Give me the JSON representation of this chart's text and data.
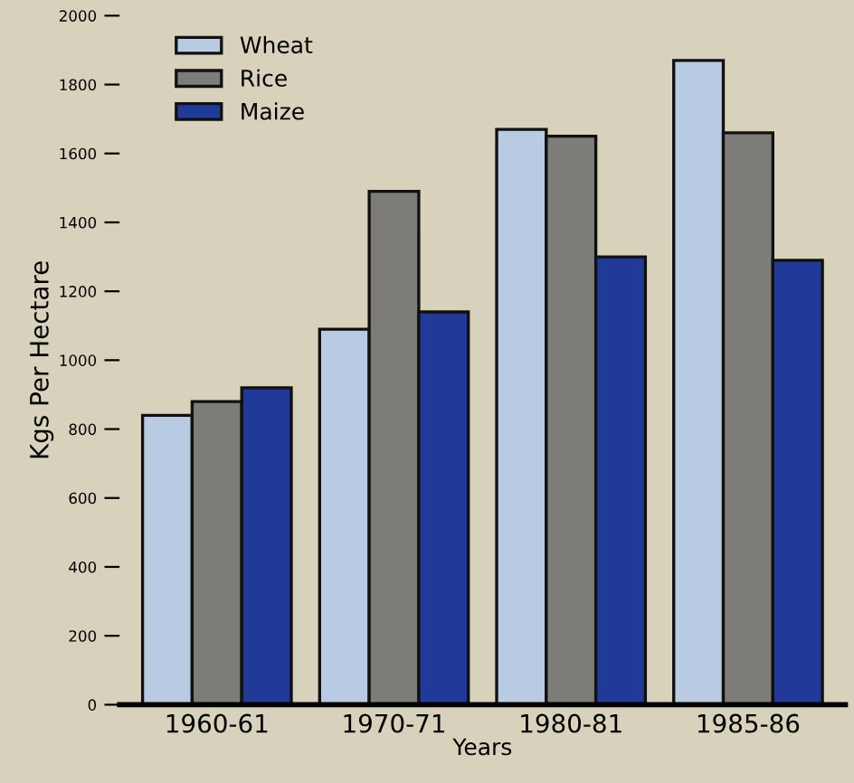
{
  "chart_data": {
    "type": "bar",
    "xlabel": "Years",
    "ylabel": "Kgs Per Hectare",
    "categories": [
      "1960-61",
      "1970-71",
      "1980-81",
      "1985-86"
    ],
    "series": [
      {
        "name": "Wheat",
        "color": "#b9cbe2",
        "values": [
          840,
          1090,
          1670,
          1870
        ]
      },
      {
        "name": "Rice",
        "color": "#7e7c78",
        "values": [
          880,
          1490,
          1650,
          1660
        ]
      },
      {
        "name": "Maize",
        "color": "#213a98",
        "values": [
          920,
          1140,
          1300,
          1290
        ]
      }
    ],
    "ylim": [
      0,
      2000
    ],
    "yticks": [
      0,
      200,
      400,
      600,
      800,
      1000,
      1200,
      1400,
      1600,
      1800,
      2000
    ],
    "legend": "top left",
    "grid": false
  }
}
